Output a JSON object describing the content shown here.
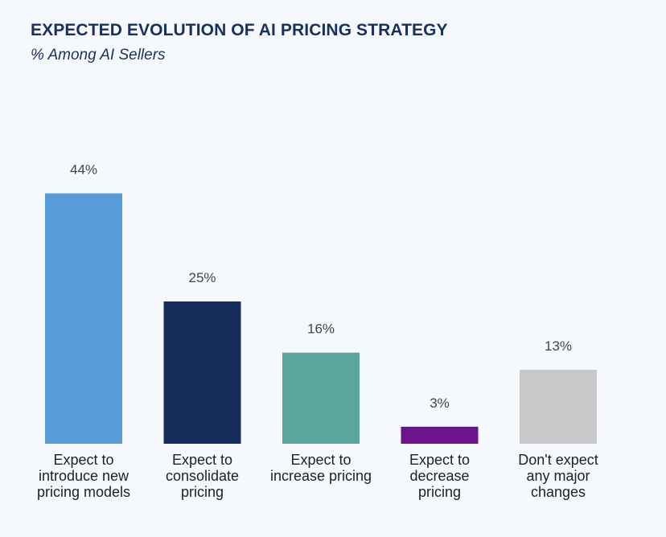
{
  "chart_data": {
    "type": "bar",
    "title": "EXPECTED EVOLUTION OF AI PRICING STRATEGY",
    "subtitle": "% Among AI Sellers",
    "categories": [
      [
        "Expect to",
        "introduce new",
        "pricing models"
      ],
      [
        "Expect to",
        "consolidate",
        "pricing"
      ],
      [
        "Expect to",
        "increase pricing"
      ],
      [
        "Expect to",
        "decrease",
        "pricing"
      ],
      [
        "Don't expect",
        "any major",
        "changes"
      ]
    ],
    "values": [
      44,
      25,
      16,
      3,
      13
    ],
    "value_labels": [
      "44%",
      "25%",
      "16%",
      "3%",
      "13%"
    ],
    "colors": [
      "#569cd9",
      "#172d5c",
      "#5ba69b",
      "#6b148b",
      "#c8c8c8"
    ],
    "ylim": [
      0,
      100
    ],
    "grid": false,
    "legend": "none"
  }
}
